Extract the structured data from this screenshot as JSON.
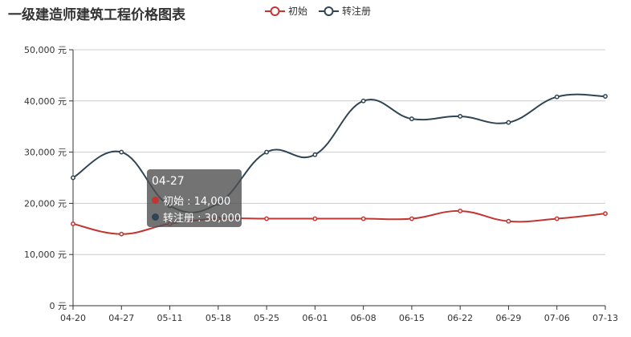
{
  "title": "一级建造师建筑工程价格图表",
  "colors": {
    "initial": "#c23531",
    "transfer": "#2f4554",
    "grid": "#cccccc",
    "axis": "#333333"
  },
  "chart_data": {
    "type": "line",
    "title": "一级建造师建筑工程价格图表",
    "categories": [
      "04-20",
      "04-27",
      "05-11",
      "05-18",
      "05-25",
      "06-01",
      "06-08",
      "06-15",
      "06-22",
      "06-29",
      "07-06",
      "07-13"
    ],
    "series": [
      {
        "name": "初始",
        "values": [
          16000,
          14000,
          16000,
          17000,
          17000,
          17000,
          17000,
          17000,
          18500,
          16500,
          17000,
          18000
        ]
      },
      {
        "name": "转注册",
        "values": [
          25000,
          30000,
          19500,
          20000,
          30000,
          29500,
          40000,
          36500,
          37000,
          35800,
          40800,
          40900
        ]
      }
    ],
    "y_ticks": [
      "0 元",
      "10,000 元",
      "20,000 元",
      "30,000 元",
      "40,000 元",
      "50,000 元"
    ],
    "ylim": [
      0,
      50000
    ],
    "grid": true,
    "legend_position": "top-center",
    "smooth": true
  },
  "tooltip": {
    "title": "04-27",
    "rows": [
      {
        "label": "初始 : 14,000"
      },
      {
        "label": "转注册 : 30,000"
      }
    ]
  }
}
